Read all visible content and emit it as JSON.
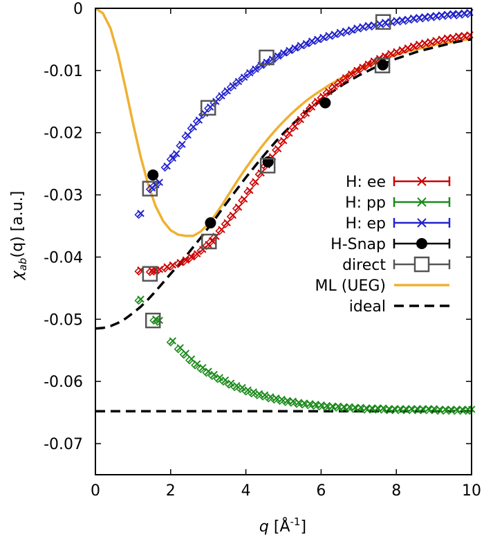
{
  "chart_data": {
    "type": "scatter",
    "xlabel_var": "q",
    "xlabel_unit": " [Å",
    "xlabel_exp": "-1",
    "xlabel_close": "]",
    "ylabel_chi": "χ",
    "ylabel_sub": "ab",
    "ylabel_rest": "(q) [a.u.]",
    "xlim": [
      0,
      10
    ],
    "ylim": [
      -0.075,
      0
    ],
    "xticks": [
      "0",
      "2",
      "4",
      "6",
      "8",
      "10"
    ],
    "yticks": [
      "0",
      "-0.01",
      "-0.02",
      "-0.03",
      "-0.04",
      "-0.05",
      "-0.06",
      "-0.07"
    ],
    "legend": {
      "position": "right-middle"
    },
    "series": [
      {
        "name": "H: ee",
        "color": "#cc0000",
        "marker": "x+diamond",
        "legend_style": "errorbar-x",
        "x": [
          1.15,
          1.45,
          1.55,
          1.65,
          1.85,
          2.0,
          2.2,
          2.35,
          2.5,
          2.65,
          2.8,
          2.95,
          3.05,
          3.15,
          3.3,
          3.45,
          3.6,
          3.75,
          3.9,
          4.05,
          4.2,
          4.35,
          4.5,
          4.65,
          4.8,
          4.95,
          5.1,
          5.25,
          5.4,
          5.55,
          5.7,
          5.85,
          6.0,
          6.15,
          6.3,
          6.45,
          6.6,
          6.75,
          6.9,
          7.05,
          7.2,
          7.35,
          7.5,
          7.65,
          7.8,
          7.95,
          8.1,
          8.25,
          8.4,
          8.55,
          8.7,
          8.85,
          9.0,
          9.15,
          9.3,
          9.45,
          9.6,
          9.75,
          9.9
        ],
        "y": [
          -0.0423,
          -0.0424,
          -0.0423,
          -0.0422,
          -0.0418,
          -0.0415,
          -0.0411,
          -0.0407,
          -0.0402,
          -0.0397,
          -0.039,
          -0.0382,
          -0.0376,
          -0.0369,
          -0.0358,
          -0.0347,
          -0.0335,
          -0.0322,
          -0.0309,
          -0.0295,
          -0.0281,
          -0.0267,
          -0.0254,
          -0.0241,
          -0.0228,
          -0.0215,
          -0.0203,
          -0.0192,
          -0.0181,
          -0.0171,
          -0.0161,
          -0.0152,
          -0.0144,
          -0.0136,
          -0.0128,
          -0.0121,
          -0.0114,
          -0.0108,
          -0.0102,
          -0.0097,
          -0.0092,
          -0.0087,
          -0.0083,
          -0.0079,
          -0.0075,
          -0.0072,
          -0.0069,
          -0.0066,
          -0.0063,
          -0.006,
          -0.0058,
          -0.0056,
          -0.0054,
          -0.0052,
          -0.005,
          -0.0049,
          -0.0047,
          -0.0046,
          -0.0045
        ]
      },
      {
        "name": "H: pp",
        "color": "#1a8a1a",
        "marker": "x+diamond",
        "legend_style": "errorbar-x",
        "x": [
          1.15,
          1.55,
          1.65,
          2.0,
          2.2,
          2.35,
          2.5,
          2.65,
          2.8,
          2.95,
          3.1,
          3.25,
          3.4,
          3.55,
          3.7,
          3.85,
          4.0,
          4.15,
          4.3,
          4.45,
          4.6,
          4.75,
          4.9,
          5.05,
          5.2,
          5.35,
          5.5,
          5.65,
          5.8,
          5.95,
          6.1,
          6.25,
          6.4,
          6.55,
          6.7,
          6.85,
          7.0,
          7.15,
          7.3,
          7.45,
          7.6,
          7.75,
          7.9,
          8.05,
          8.2,
          8.35,
          8.5,
          8.65,
          8.8,
          8.95,
          9.1,
          9.25,
          9.4,
          9.55,
          9.7,
          9.85,
          9.95
        ],
        "y": [
          -0.047,
          -0.0502,
          -0.0504,
          -0.0537,
          -0.0548,
          -0.0557,
          -0.0566,
          -0.0574,
          -0.058,
          -0.0586,
          -0.0591,
          -0.0596,
          -0.06,
          -0.0605,
          -0.0609,
          -0.0612,
          -0.0616,
          -0.0619,
          -0.0622,
          -0.0624,
          -0.0627,
          -0.0629,
          -0.0631,
          -0.0633,
          -0.0634,
          -0.0636,
          -0.0637,
          -0.0638,
          -0.0639,
          -0.064,
          -0.0641,
          -0.0642,
          -0.0642,
          -0.0643,
          -0.0643,
          -0.0644,
          -0.0644,
          -0.0645,
          -0.0645,
          -0.0645,
          -0.0645,
          -0.0646,
          -0.0646,
          -0.0646,
          -0.0646,
          -0.0646,
          -0.0646,
          -0.0646,
          -0.0646,
          -0.0646,
          -0.0647,
          -0.0647,
          -0.0647,
          -0.0647,
          -0.0647,
          -0.0647,
          -0.0647
        ]
      },
      {
        "name": "H: ep",
        "color": "#2222cc",
        "marker": "x+diamond",
        "legend_style": "errorbar-x",
        "x": [
          1.15,
          1.45,
          1.55,
          1.65,
          1.85,
          2.0,
          2.1,
          2.25,
          2.4,
          2.55,
          2.7,
          2.85,
          3.0,
          3.15,
          3.3,
          3.45,
          3.6,
          3.75,
          3.9,
          4.05,
          4.2,
          4.35,
          4.5,
          4.65,
          4.8,
          4.95,
          5.1,
          5.25,
          5.4,
          5.55,
          5.7,
          5.85,
          6.0,
          6.15,
          6.3,
          6.45,
          6.6,
          6.75,
          6.9,
          7.05,
          7.2,
          7.35,
          7.5,
          7.65,
          7.8,
          7.95,
          8.1,
          8.25,
          8.4,
          8.55,
          8.7,
          8.85,
          9.0,
          9.15,
          9.3,
          9.45,
          9.6,
          9.75,
          9.9
        ],
        "y": [
          -0.0332,
          -0.0291,
          -0.0286,
          -0.0282,
          -0.0256,
          -0.0243,
          -0.0236,
          -0.0221,
          -0.0206,
          -0.0193,
          -0.0182,
          -0.0171,
          -0.0161,
          -0.0152,
          -0.0143,
          -0.0135,
          -0.0127,
          -0.012,
          -0.0113,
          -0.0106,
          -0.01,
          -0.0094,
          -0.0089,
          -0.0084,
          -0.0079,
          -0.0074,
          -0.007,
          -0.0066,
          -0.0062,
          -0.0059,
          -0.0055,
          -0.0052,
          -0.0049,
          -0.0046,
          -0.0044,
          -0.0041,
          -0.0039,
          -0.0037,
          -0.0034,
          -0.0032,
          -0.003,
          -0.0029,
          -0.0027,
          -0.0025,
          -0.0024,
          -0.0022,
          -0.0021,
          -0.002,
          -0.0018,
          -0.0017,
          -0.0016,
          -0.0015,
          -0.0014,
          -0.0013,
          -0.0012,
          -0.0011,
          -0.0011,
          -0.001,
          -0.0009
        ]
      },
      {
        "name": "H-Snap",
        "color": "#000000",
        "marker": "filled-circle",
        "legend_style": "errorbar-circle",
        "x": [
          1.53,
          3.06,
          4.59,
          6.11,
          7.64
        ],
        "y": [
          -0.0268,
          -0.0345,
          -0.0247,
          -0.0152,
          -0.0091
        ]
      },
      {
        "name": "direct",
        "color": "#555555",
        "marker": "open-square",
        "legend_style": "errorbar-square",
        "x": [
          1.45,
          1.45,
          1.53,
          3.0,
          3.02,
          4.55,
          4.58,
          7.65,
          7.63
        ],
        "y": [
          -0.029,
          -0.0427,
          -0.0502,
          -0.016,
          -0.0375,
          -0.0079,
          -0.0253,
          -0.0022,
          -0.0092
        ]
      }
    ],
    "lines": [
      {
        "name": "ML (UEG)",
        "color": "#f0b030",
        "style": "solid",
        "x": [
          0,
          0.2,
          0.4,
          0.6,
          0.8,
          1.0,
          1.2,
          1.4,
          1.6,
          1.8,
          2.0,
          2.2,
          2.4,
          2.6,
          2.8,
          3.0,
          3.2,
          3.4,
          3.6,
          3.8,
          4.0,
          4.2,
          4.4,
          4.6,
          4.8,
          5.0,
          5.2,
          5.4,
          5.6,
          5.8,
          6.0,
          6.2,
          6.4,
          6.6,
          6.8,
          7.0,
          7.2,
          7.4,
          7.6,
          7.8,
          8.0,
          8.2,
          8.4,
          8.6,
          8.8,
          9.0,
          9.2,
          9.4,
          9.6,
          9.8,
          10.0
        ],
        "y": [
          0,
          -0.0008,
          -0.0032,
          -0.0074,
          -0.0128,
          -0.0185,
          -0.0238,
          -0.0283,
          -0.0318,
          -0.0342,
          -0.0357,
          -0.0364,
          -0.0366,
          -0.0366,
          -0.0359,
          -0.0347,
          -0.0331,
          -0.0313,
          -0.0294,
          -0.0275,
          -0.0257,
          -0.024,
          -0.0224,
          -0.0209,
          -0.0195,
          -0.0182,
          -0.017,
          -0.0159,
          -0.0149,
          -0.014,
          -0.0132,
          -0.0124,
          -0.0117,
          -0.011,
          -0.0104,
          -0.0098,
          -0.0093,
          -0.0088,
          -0.0083,
          -0.0079,
          -0.0075,
          -0.0071,
          -0.0068,
          -0.0065,
          -0.0062,
          -0.0059,
          -0.0057,
          -0.0055,
          -0.0053,
          -0.0051,
          -0.0049
        ]
      },
      {
        "name": "ideal",
        "color": "#000000",
        "style": "dashed",
        "x": [
          0,
          0.2,
          0.4,
          0.6,
          0.8,
          1.0,
          1.2,
          1.4,
          1.6,
          1.8,
          2.0,
          2.2,
          2.4,
          2.6,
          2.8,
          3.0,
          3.2,
          3.4,
          3.6,
          3.8,
          4.0,
          4.2,
          4.4,
          4.6,
          4.8,
          5.0,
          5.2,
          5.4,
          5.6,
          5.8,
          6.0,
          6.2,
          6.4,
          6.6,
          6.8,
          7.0,
          7.2,
          7.4,
          7.6,
          7.8,
          8.0,
          8.2,
          8.4,
          8.6,
          8.8,
          9.0,
          9.2,
          9.4,
          9.6,
          9.8,
          10.0
        ],
        "y": [
          -0.0515,
          -0.0514,
          -0.0511,
          -0.0506,
          -0.0499,
          -0.049,
          -0.048,
          -0.0468,
          -0.0455,
          -0.0441,
          -0.0427,
          -0.0413,
          -0.0399,
          -0.0384,
          -0.0369,
          -0.0353,
          -0.0337,
          -0.032,
          -0.0304,
          -0.0288,
          -0.0272,
          -0.0257,
          -0.0242,
          -0.0228,
          -0.0214,
          -0.0201,
          -0.0189,
          -0.0177,
          -0.0166,
          -0.0156,
          -0.0147,
          -0.0138,
          -0.013,
          -0.0122,
          -0.0115,
          -0.0108,
          -0.0102,
          -0.0096,
          -0.0091,
          -0.0086,
          -0.0081,
          -0.0077,
          -0.0073,
          -0.0069,
          -0.0066,
          -0.0063,
          -0.006,
          -0.0057,
          -0.0054,
          -0.0052,
          -0.005
        ]
      },
      {
        "name": "ideal-pp",
        "legend": false,
        "color": "#000000",
        "style": "dashed",
        "x": [
          0,
          10
        ],
        "y": [
          -0.0648,
          -0.0648
        ]
      }
    ]
  }
}
